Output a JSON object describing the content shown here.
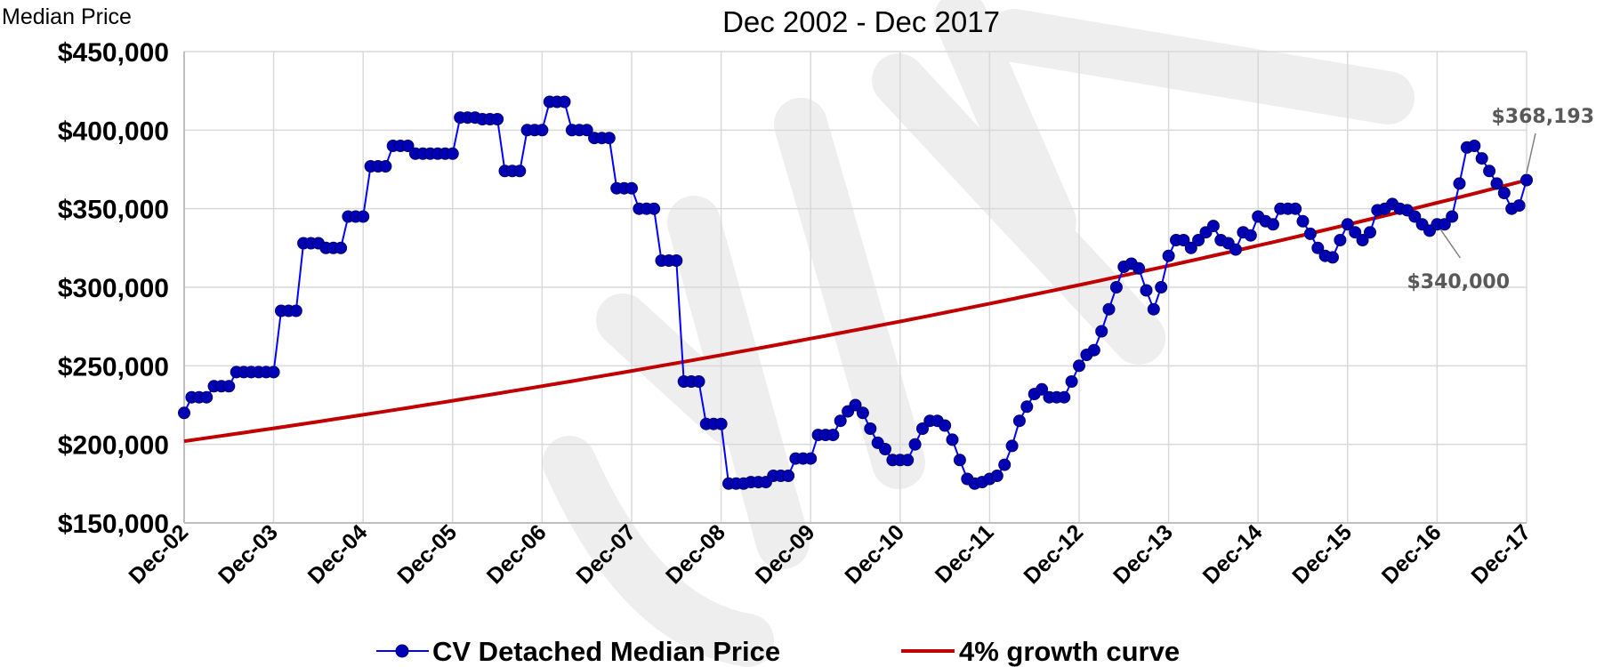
{
  "chart_data": {
    "type": "line",
    "title": "",
    "subtitle": "Dec 2002 - Dec 2017",
    "xlabel": "",
    "ylabel": "Median Price",
    "ylim": [
      150000,
      450000
    ],
    "y_ticks": [
      "$450,000",
      "$400,000",
      "$350,000",
      "$300,000",
      "$250,000",
      "$200,000",
      "$150,000"
    ],
    "y_tick_values": [
      450000,
      400000,
      350000,
      300000,
      250000,
      200000,
      150000
    ],
    "x_ticks": [
      "Dec-02",
      "Dec-03",
      "Dec-04",
      "Dec-05",
      "Dec-06",
      "Dec-07",
      "Dec-08",
      "Dec-09",
      "Dec-10",
      "Dec-11",
      "Dec-12",
      "Dec-13",
      "Dec-14",
      "Dec-15",
      "Dec-16",
      "Dec-17"
    ],
    "x_range_months": [
      0,
      180
    ],
    "grid": true,
    "legend_position": "bottom",
    "series": [
      {
        "name": "CV Detached Median Price",
        "color": "#0000ff",
        "marker_color": "#0000b4",
        "style": "line-with-circle-markers",
        "x_month_index": [
          0,
          1,
          2,
          3,
          4,
          5,
          6,
          7,
          8,
          9,
          10,
          11,
          12,
          13,
          14,
          15,
          16,
          17,
          18,
          19,
          20,
          21,
          22,
          23,
          24,
          25,
          26,
          27,
          28,
          29,
          30,
          31,
          32,
          33,
          34,
          35,
          36,
          37,
          38,
          39,
          40,
          41,
          42,
          43,
          44,
          45,
          46,
          47,
          48,
          49,
          50,
          51,
          52,
          53,
          54,
          55,
          56,
          57,
          58,
          59,
          60,
          61,
          62,
          63,
          64,
          65,
          66,
          67,
          68,
          69,
          70,
          71,
          72,
          73,
          74,
          75,
          76,
          77,
          78,
          79,
          80,
          81,
          82,
          83,
          84,
          85,
          86,
          87,
          88,
          89,
          90,
          91,
          92,
          93,
          94,
          95,
          96,
          97,
          98,
          99,
          100,
          101,
          102,
          103,
          104,
          105,
          106,
          107,
          108,
          109,
          110,
          111,
          112,
          113,
          114,
          115,
          116,
          117,
          118,
          119,
          120,
          121,
          122,
          123,
          124,
          125,
          126,
          127,
          128,
          129,
          130,
          131,
          132,
          133,
          134,
          135,
          136,
          137,
          138,
          139,
          140,
          141,
          142,
          143,
          144,
          145,
          146,
          147,
          148,
          149,
          150,
          151,
          152,
          153,
          154,
          155,
          156,
          157,
          158,
          159,
          160,
          161,
          162,
          163,
          164,
          165,
          166,
          167,
          168,
          169,
          170,
          171,
          172,
          173,
          174,
          175,
          176,
          177,
          178,
          179,
          180
        ],
        "values": [
          220000,
          230000,
          230000,
          230000,
          237000,
          237000,
          237000,
          246000,
          246000,
          246000,
          246000,
          246000,
          246000,
          285000,
          285000,
          285000,
          328000,
          328000,
          328000,
          325000,
          325000,
          325000,
          345000,
          345000,
          345000,
          377000,
          377000,
          377000,
          390000,
          390000,
          390000,
          385000,
          385000,
          385000,
          385000,
          385000,
          385000,
          408000,
          408000,
          408000,
          407000,
          407000,
          407000,
          374000,
          374000,
          374000,
          400000,
          400000,
          400000,
          418000,
          418000,
          418000,
          400000,
          400000,
          400000,
          395000,
          395000,
          395000,
          363000,
          363000,
          363000,
          350000,
          350000,
          350000,
          317000,
          317000,
          317000,
          240000,
          240000,
          240000,
          213000,
          213000,
          213000,
          175000,
          175000,
          175000,
          176000,
          176000,
          176000,
          180000,
          180000,
          180000,
          191000,
          191000,
          191000,
          206000,
          206000,
          206000,
          215000,
          221000,
          225000,
          220000,
          210000,
          201000,
          197000,
          190000,
          190000,
          190000,
          200000,
          210000,
          215000,
          215000,
          212000,
          203000,
          190000,
          178000,
          175000,
          176000,
          178000,
          180000,
          187000,
          199000,
          215000,
          224000,
          232000,
          235000,
          230000,
          230000,
          230000,
          240000,
          250000,
          257000,
          260000,
          272000,
          286000,
          300000,
          313000,
          315000,
          312000,
          298000,
          286000,
          300000,
          320000,
          330000,
          330000,
          325000,
          330000,
          335000,
          339000,
          330000,
          328000,
          324000,
          335000,
          333000,
          345000,
          342000,
          340000,
          350000,
          350000,
          350000,
          342000,
          334000,
          325000,
          320000,
          319000,
          330000,
          340000,
          335000,
          330000,
          335000,
          349000,
          350000,
          353000,
          350000,
          349000,
          345000,
          340000,
          336000,
          340000,
          340000,
          345000,
          366000,
          389000,
          390000,
          382000,
          374000,
          366000,
          360000,
          350000,
          352000,
          368193
        ]
      },
      {
        "name": "4% growth curve",
        "color": "#c00000",
        "style": "line",
        "start_value": 202000,
        "end_value": 368193,
        "annual_growth": 0.04
      }
    ],
    "annotations": [
      {
        "text": "$368,193",
        "x_month_index": 180,
        "value": 368193
      },
      {
        "text": "$340,000",
        "x_month_index": 168,
        "value": 340000
      }
    ]
  }
}
